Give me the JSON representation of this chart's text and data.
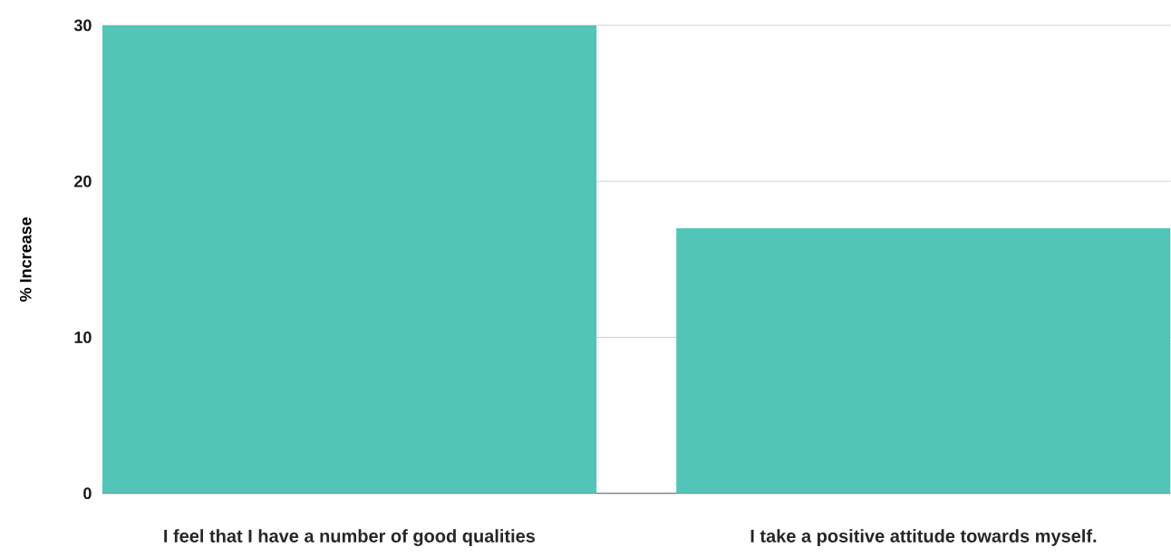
{
  "chart_data": {
    "type": "bar",
    "ylabel": "% Increase",
    "categories": [
      "I feel that I have a number of good qualities",
      "I take a positive attitude towards myself."
    ],
    "values": [
      30,
      17
    ],
    "color": "#52c4b8",
    "ylim": [
      0,
      30
    ],
    "yticks": [
      0,
      10,
      20,
      30
    ],
    "grid": "y"
  }
}
